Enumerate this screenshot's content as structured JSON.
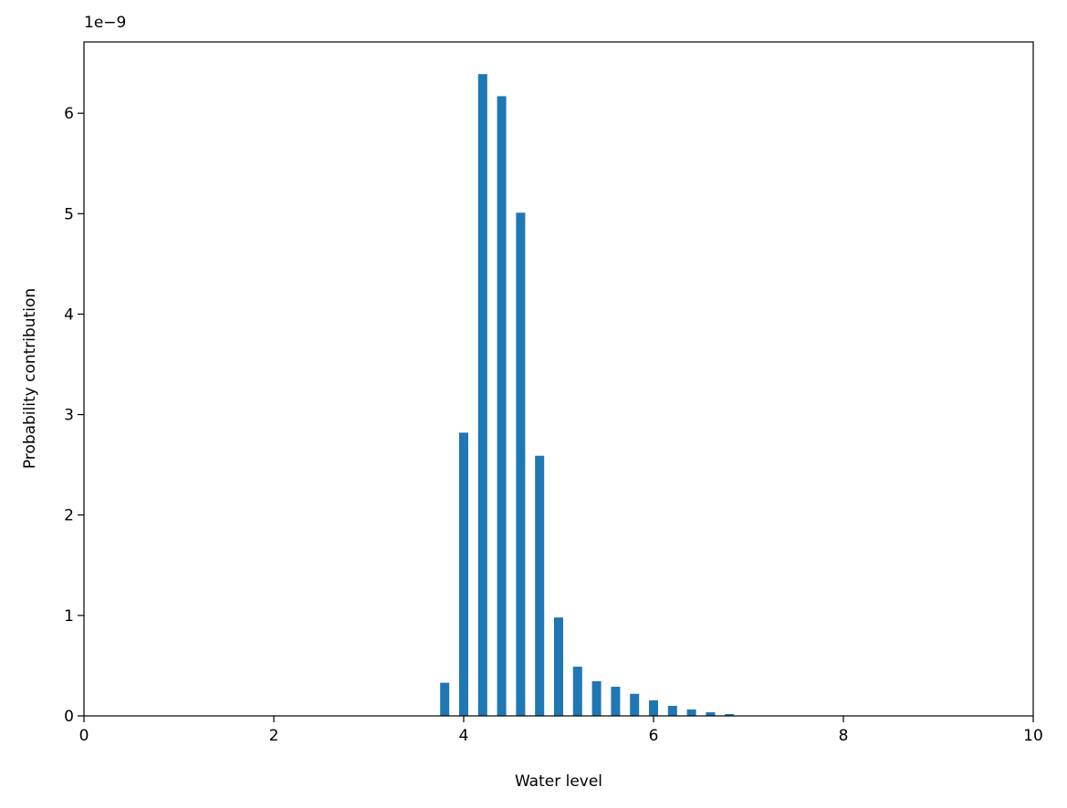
{
  "chart_data": {
    "type": "bar",
    "x_label": "Water level",
    "y_label": "Probability contribution",
    "y_offset_text": "1e−9",
    "x": [
      3.8,
      4.0,
      4.2,
      4.4,
      4.6,
      4.8,
      5.0,
      5.2,
      5.4,
      5.6,
      5.8,
      6.0,
      6.2,
      6.4,
      6.6,
      6.8
    ],
    "values": [
      0.33,
      2.82,
      6.39,
      6.17,
      5.01,
      2.59,
      0.98,
      0.49,
      0.345,
      0.29,
      0.22,
      0.155,
      0.1,
      0.064,
      0.036,
      0.018
    ],
    "color": "#1f77b4",
    "xlim": [
      0,
      10
    ],
    "xticks": [
      0,
      2,
      4,
      6,
      8,
      10
    ],
    "ylim": [
      0,
      6.71
    ],
    "yticks": [
      0,
      1,
      2,
      3,
      4,
      5,
      6
    ],
    "grid": false
  }
}
